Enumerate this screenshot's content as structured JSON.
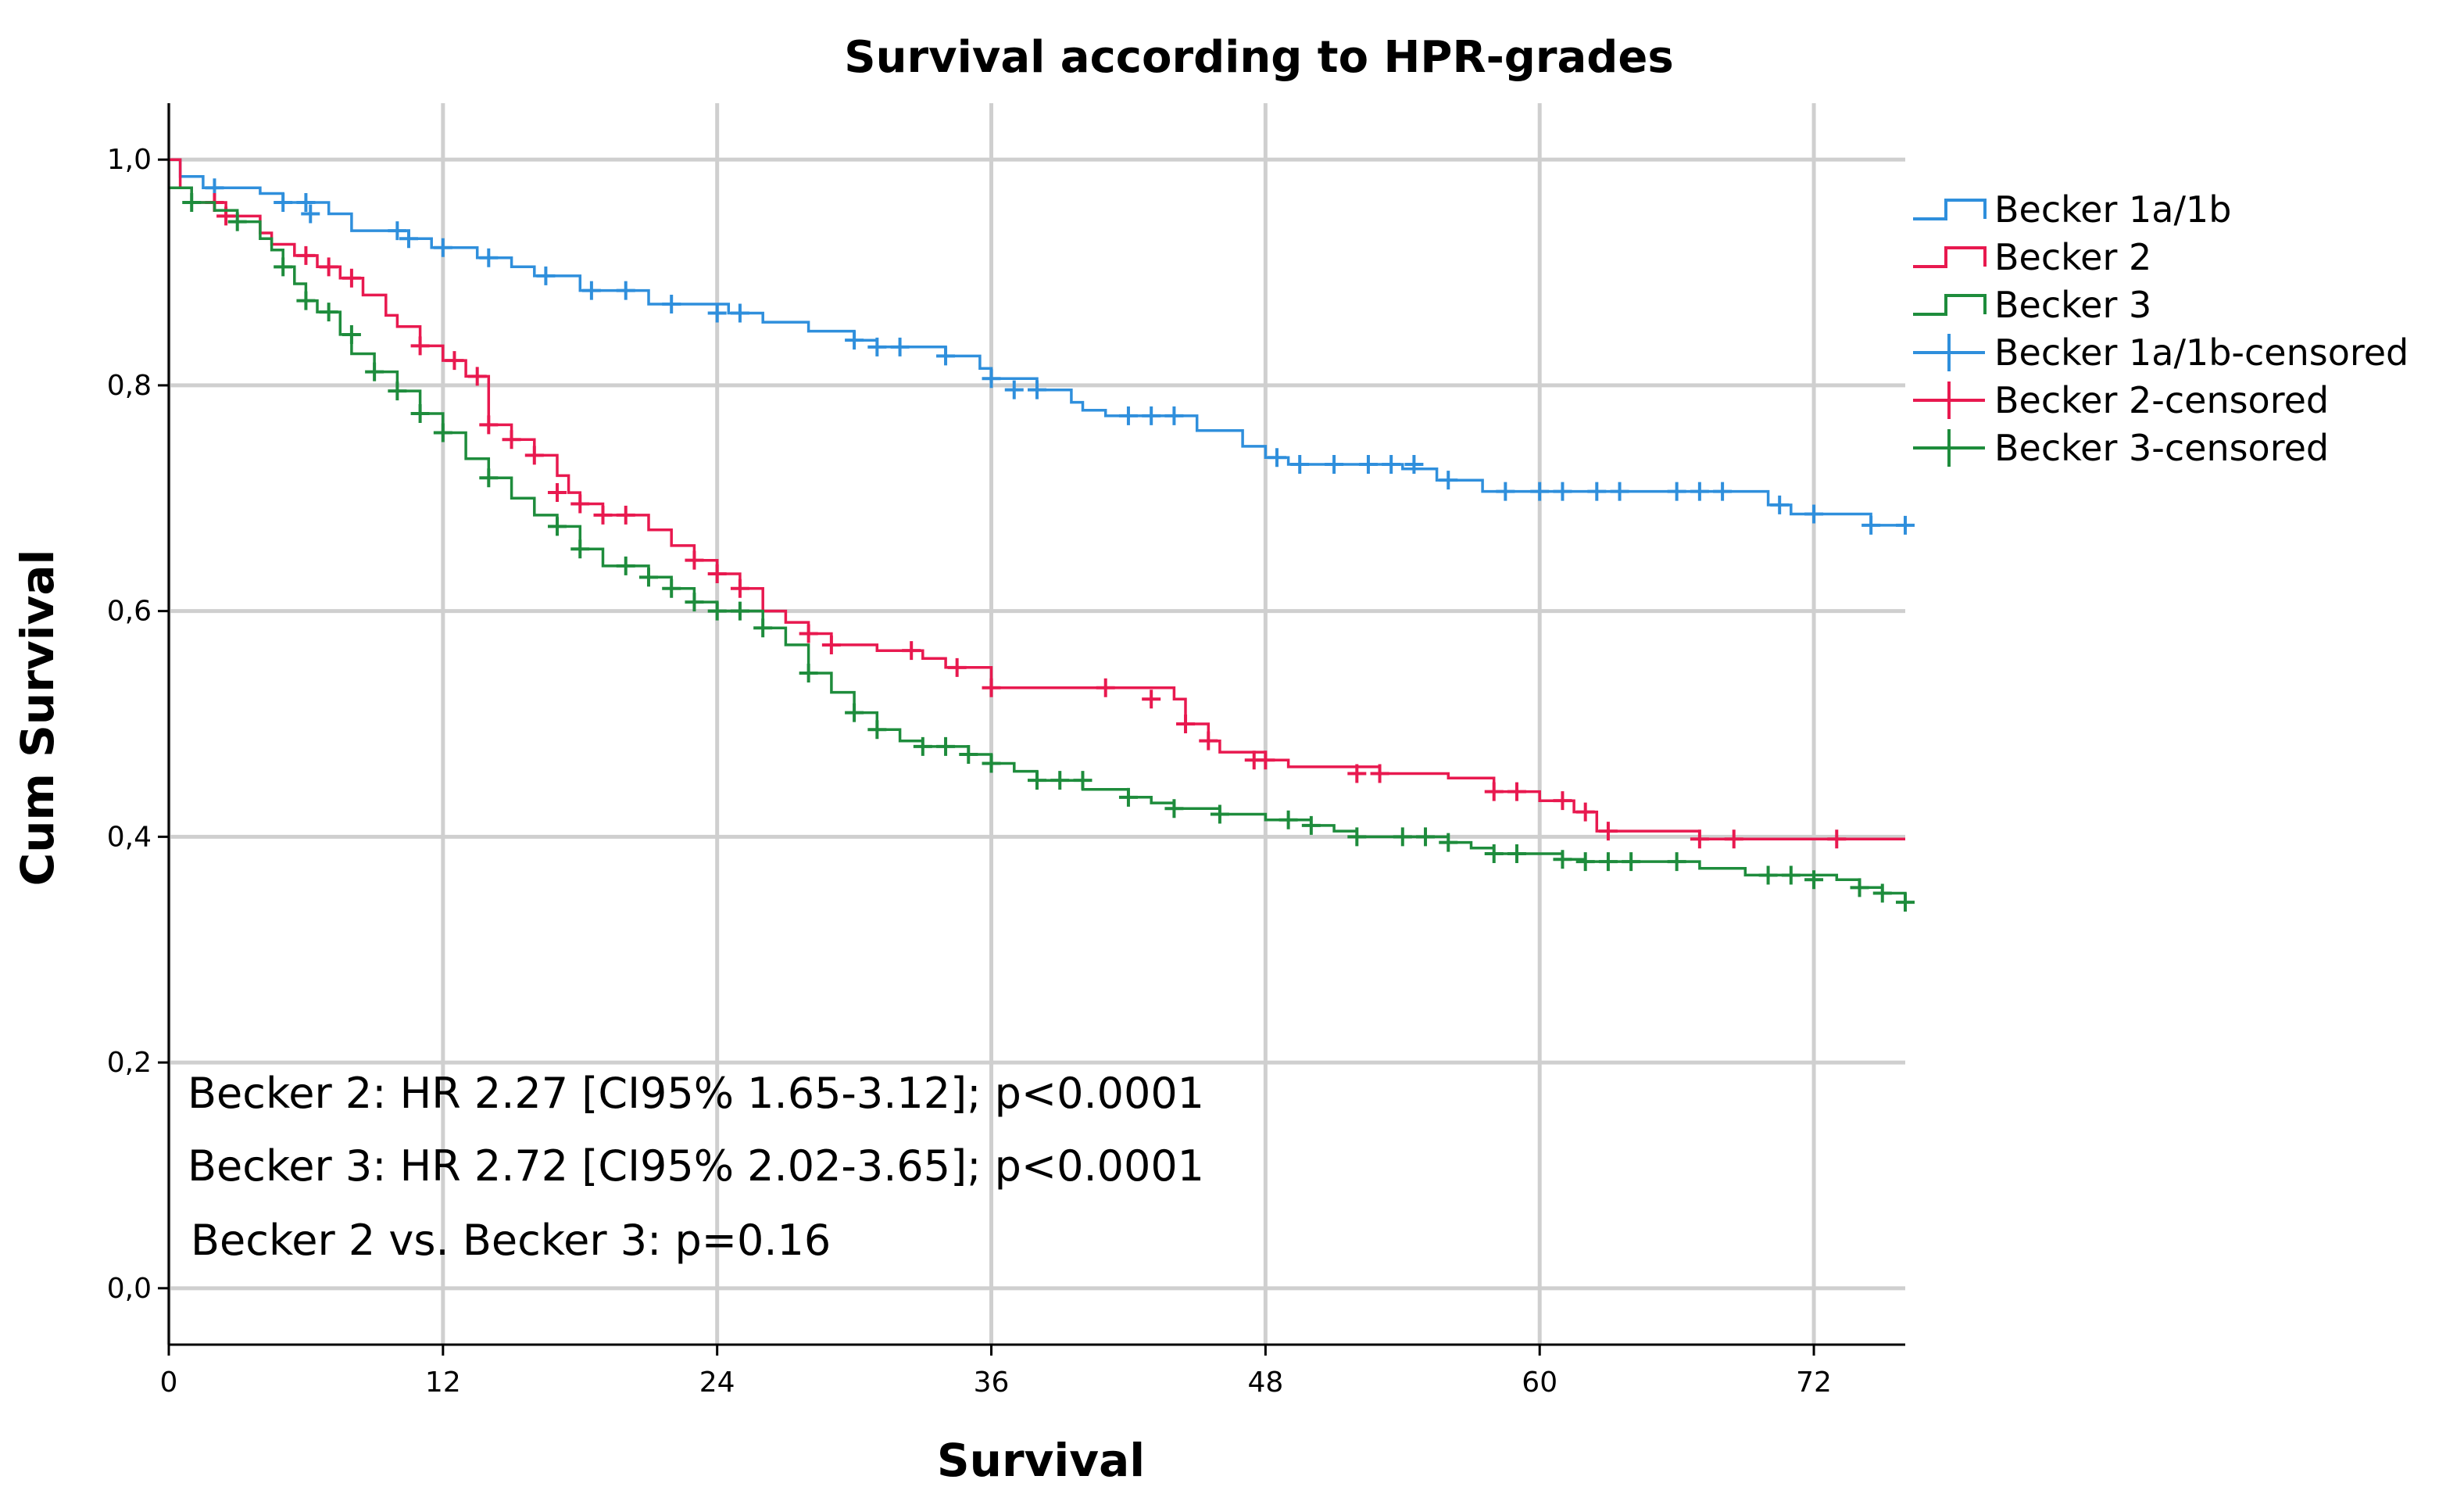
{
  "chart_data": {
    "type": "line",
    "title": "Survival according to HPR-grades",
    "xlabel": "Survival",
    "ylabel": "Cum Survival",
    "xlim": [
      0,
      76
    ],
    "ylim": [
      -0.05,
      1.05
    ],
    "x_ticks": [
      0,
      12,
      24,
      36,
      48,
      60,
      72
    ],
    "x_tick_labels": [
      "0",
      "12",
      "24",
      "36",
      "48",
      "60",
      "72"
    ],
    "y_ticks": [
      0.0,
      0.2,
      0.4,
      0.6,
      0.8,
      1.0
    ],
    "y_tick_labels": [
      "0,0",
      "0,2",
      "0,4",
      "0,6",
      "0,8",
      "1,0"
    ],
    "grid": true,
    "legend_position": "right",
    "legend": [
      {
        "label": "Becker 1a/1b",
        "kind": "step",
        "series": 0
      },
      {
        "label": "Becker 2",
        "kind": "step",
        "series": 1
      },
      {
        "label": "Becker 3",
        "kind": "step",
        "series": 2
      },
      {
        "label": "Becker 1a/1b-censored",
        "kind": "censor",
        "series": 0
      },
      {
        "label": "Becker 2-censored",
        "kind": "censor",
        "series": 1
      },
      {
        "label": "Becker 3-censored",
        "kind": "censor",
        "series": 2
      }
    ],
    "annotations": [
      "Becker 2: HR 2.27 [CI95% 1.65-3.12]; p<0.0001",
      "Becker 3: HR 2.72 [CI95% 2.02-3.65]; p<0.0001",
      "Becker 2 vs. Becker 3: p=0.16"
    ],
    "series": [
      {
        "name": "Becker 1a/1b",
        "color": "#2f8fdc",
        "steps": [
          [
            0,
            1.0
          ],
          [
            0.5,
            0.985
          ],
          [
            1.5,
            0.975
          ],
          [
            4,
            0.97
          ],
          [
            5,
            0.962
          ],
          [
            7,
            0.952
          ],
          [
            8,
            0.937
          ],
          [
            10.5,
            0.93
          ],
          [
            11.5,
            0.922
          ],
          [
            13.5,
            0.913
          ],
          [
            15,
            0.905
          ],
          [
            16,
            0.897
          ],
          [
            18,
            0.884
          ],
          [
            21,
            0.872
          ],
          [
            24.5,
            0.864
          ],
          [
            26,
            0.856
          ],
          [
            28,
            0.848
          ],
          [
            30,
            0.84
          ],
          [
            31,
            0.834
          ],
          [
            34,
            0.826
          ],
          [
            35.5,
            0.815
          ],
          [
            36,
            0.806
          ],
          [
            38,
            0.796
          ],
          [
            39.5,
            0.785
          ],
          [
            40,
            0.778
          ],
          [
            41,
            0.773
          ],
          [
            45,
            0.76
          ],
          [
            47,
            0.746
          ],
          [
            48,
            0.736
          ],
          [
            49,
            0.73
          ],
          [
            54,
            0.726
          ],
          [
            55.5,
            0.716
          ],
          [
            57.5,
            0.706
          ],
          [
            70,
            0.694
          ],
          [
            71,
            0.686
          ],
          [
            74.5,
            0.676
          ],
          [
            76,
            0.676
          ]
        ],
        "censors": [
          [
            2,
            0.975
          ],
          [
            5,
            0.962
          ],
          [
            6,
            0.962
          ],
          [
            6.2,
            0.952
          ],
          [
            10,
            0.937
          ],
          [
            10.5,
            0.93
          ],
          [
            12,
            0.922
          ],
          [
            14,
            0.913
          ],
          [
            16.5,
            0.897
          ],
          [
            18.5,
            0.884
          ],
          [
            20,
            0.884
          ],
          [
            22,
            0.872
          ],
          [
            24,
            0.864
          ],
          [
            25,
            0.864
          ],
          [
            30,
            0.84
          ],
          [
            31,
            0.834
          ],
          [
            32,
            0.834
          ],
          [
            34,
            0.826
          ],
          [
            36,
            0.806
          ],
          [
            37,
            0.796
          ],
          [
            38,
            0.796
          ],
          [
            42,
            0.773
          ],
          [
            43,
            0.773
          ],
          [
            44,
            0.773
          ],
          [
            48.5,
            0.736
          ],
          [
            49.5,
            0.73
          ],
          [
            51,
            0.73
          ],
          [
            52.5,
            0.73
          ],
          [
            53.5,
            0.73
          ],
          [
            54.5,
            0.73
          ],
          [
            56,
            0.716
          ],
          [
            58.5,
            0.706
          ],
          [
            60,
            0.706
          ],
          [
            61,
            0.706
          ],
          [
            62.5,
            0.706
          ],
          [
            63.5,
            0.706
          ],
          [
            66,
            0.706
          ],
          [
            67,
            0.706
          ],
          [
            68,
            0.706
          ],
          [
            70.5,
            0.694
          ],
          [
            72,
            0.686
          ],
          [
            74.5,
            0.676
          ],
          [
            76,
            0.676
          ]
        ]
      },
      {
        "name": "Becker 2",
        "color": "#e8194f",
        "steps": [
          [
            0,
            1.0
          ],
          [
            0.5,
            0.975
          ],
          [
            1,
            0.962
          ],
          [
            2.5,
            0.95
          ],
          [
            4,
            0.935
          ],
          [
            4.5,
            0.925
          ],
          [
            5.5,
            0.915
          ],
          [
            6.5,
            0.905
          ],
          [
            7.5,
            0.895
          ],
          [
            8.5,
            0.88
          ],
          [
            9.5,
            0.862
          ],
          [
            10,
            0.852
          ],
          [
            11,
            0.835
          ],
          [
            12,
            0.822
          ],
          [
            13,
            0.808
          ],
          [
            14,
            0.765
          ],
          [
            15,
            0.752
          ],
          [
            16,
            0.738
          ],
          [
            17,
            0.72
          ],
          [
            17.5,
            0.705
          ],
          [
            18,
            0.695
          ],
          [
            19,
            0.685
          ],
          [
            21,
            0.672
          ],
          [
            22,
            0.658
          ],
          [
            23,
            0.645
          ],
          [
            24,
            0.633
          ],
          [
            25,
            0.62
          ],
          [
            26,
            0.6
          ],
          [
            27,
            0.59
          ],
          [
            28,
            0.58
          ],
          [
            29,
            0.57
          ],
          [
            31,
            0.565
          ],
          [
            33,
            0.558
          ],
          [
            34,
            0.55
          ],
          [
            36,
            0.532
          ],
          [
            44,
            0.522
          ],
          [
            44.5,
            0.5
          ],
          [
            45.5,
            0.485
          ],
          [
            46,
            0.475
          ],
          [
            48,
            0.468
          ],
          [
            49,
            0.462
          ],
          [
            53,
            0.456
          ],
          [
            56,
            0.452
          ],
          [
            58,
            0.44
          ],
          [
            60,
            0.432
          ],
          [
            61.5,
            0.422
          ],
          [
            62.5,
            0.405
          ],
          [
            67,
            0.398
          ],
          [
            76,
            0.398
          ]
        ],
        "censors": [
          [
            2,
            0.962
          ],
          [
            2.5,
            0.95
          ],
          [
            6,
            0.915
          ],
          [
            7,
            0.905
          ],
          [
            8,
            0.895
          ],
          [
            11,
            0.835
          ],
          [
            12.5,
            0.822
          ],
          [
            13.5,
            0.808
          ],
          [
            14,
            0.765
          ],
          [
            15,
            0.752
          ],
          [
            16,
            0.738
          ],
          [
            17,
            0.705
          ],
          [
            18,
            0.695
          ],
          [
            19,
            0.685
          ],
          [
            20,
            0.685
          ],
          [
            23,
            0.645
          ],
          [
            24,
            0.633
          ],
          [
            25,
            0.62
          ],
          [
            28,
            0.58
          ],
          [
            29,
            0.57
          ],
          [
            32.5,
            0.565
          ],
          [
            34.5,
            0.55
          ],
          [
            36,
            0.532
          ],
          [
            41,
            0.532
          ],
          [
            43,
            0.522
          ],
          [
            44.5,
            0.5
          ],
          [
            45.5,
            0.485
          ],
          [
            47.5,
            0.468
          ],
          [
            48,
            0.468
          ],
          [
            52,
            0.456
          ],
          [
            53,
            0.456
          ],
          [
            58,
            0.44
          ],
          [
            59,
            0.44
          ],
          [
            61,
            0.432
          ],
          [
            62,
            0.422
          ],
          [
            63,
            0.405
          ],
          [
            67,
            0.398
          ],
          [
            68.5,
            0.398
          ],
          [
            73,
            0.398
          ]
        ]
      },
      {
        "name": "Becker 3",
        "color": "#1e8c3c",
        "steps": [
          [
            0,
            0.975
          ],
          [
            1,
            0.962
          ],
          [
            2,
            0.955
          ],
          [
            3,
            0.945
          ],
          [
            4,
            0.93
          ],
          [
            4.5,
            0.92
          ],
          [
            5,
            0.905
          ],
          [
            5.5,
            0.89
          ],
          [
            6,
            0.875
          ],
          [
            6.5,
            0.865
          ],
          [
            7.5,
            0.845
          ],
          [
            8,
            0.828
          ],
          [
            9,
            0.812
          ],
          [
            10,
            0.795
          ],
          [
            11,
            0.775
          ],
          [
            12,
            0.758
          ],
          [
            13,
            0.735
          ],
          [
            14,
            0.718
          ],
          [
            15,
            0.7
          ],
          [
            16,
            0.685
          ],
          [
            17,
            0.675
          ],
          [
            18,
            0.655
          ],
          [
            19,
            0.64
          ],
          [
            21,
            0.63
          ],
          [
            22,
            0.62
          ],
          [
            23,
            0.608
          ],
          [
            24,
            0.6
          ],
          [
            26,
            0.585
          ],
          [
            27,
            0.57
          ],
          [
            28,
            0.545
          ],
          [
            29,
            0.528
          ],
          [
            30,
            0.51
          ],
          [
            31,
            0.495
          ],
          [
            32,
            0.485
          ],
          [
            33,
            0.48
          ],
          [
            35,
            0.473
          ],
          [
            36,
            0.465
          ],
          [
            37,
            0.458
          ],
          [
            38,
            0.45
          ],
          [
            40,
            0.442
          ],
          [
            42,
            0.435
          ],
          [
            43,
            0.43
          ],
          [
            44,
            0.425
          ],
          [
            46,
            0.42
          ],
          [
            48,
            0.415
          ],
          [
            50,
            0.41
          ],
          [
            51,
            0.405
          ],
          [
            52,
            0.4
          ],
          [
            56,
            0.395
          ],
          [
            57,
            0.39
          ],
          [
            58,
            0.385
          ],
          [
            61,
            0.38
          ],
          [
            62,
            0.378
          ],
          [
            67,
            0.372
          ],
          [
            69,
            0.366
          ],
          [
            73,
            0.362
          ],
          [
            74,
            0.355
          ],
          [
            75,
            0.35
          ],
          [
            76,
            0.342
          ]
        ],
        "censors": [
          [
            1,
            0.962
          ],
          [
            3,
            0.945
          ],
          [
            5,
            0.905
          ],
          [
            6,
            0.875
          ],
          [
            7,
            0.865
          ],
          [
            8,
            0.845
          ],
          [
            9,
            0.812
          ],
          [
            10,
            0.795
          ],
          [
            11,
            0.775
          ],
          [
            12,
            0.758
          ],
          [
            14,
            0.718
          ],
          [
            17,
            0.675
          ],
          [
            18,
            0.655
          ],
          [
            20,
            0.64
          ],
          [
            21,
            0.63
          ],
          [
            22,
            0.62
          ],
          [
            23,
            0.608
          ],
          [
            24,
            0.6
          ],
          [
            25,
            0.6
          ],
          [
            26,
            0.585
          ],
          [
            28,
            0.545
          ],
          [
            30,
            0.51
          ],
          [
            31,
            0.495
          ],
          [
            33,
            0.48
          ],
          [
            34,
            0.48
          ],
          [
            35,
            0.473
          ],
          [
            36,
            0.465
          ],
          [
            38,
            0.45
          ],
          [
            39,
            0.45
          ],
          [
            40,
            0.45
          ],
          [
            42,
            0.435
          ],
          [
            44,
            0.425
          ],
          [
            46,
            0.42
          ],
          [
            49,
            0.415
          ],
          [
            50,
            0.41
          ],
          [
            52,
            0.4
          ],
          [
            54,
            0.4
          ],
          [
            55,
            0.4
          ],
          [
            56,
            0.395
          ],
          [
            58,
            0.385
          ],
          [
            59,
            0.385
          ],
          [
            61,
            0.38
          ],
          [
            62,
            0.378
          ],
          [
            63,
            0.378
          ],
          [
            64,
            0.378
          ],
          [
            66,
            0.378
          ],
          [
            70,
            0.366
          ],
          [
            71,
            0.366
          ],
          [
            72,
            0.362
          ],
          [
            74,
            0.355
          ],
          [
            75,
            0.35
          ],
          [
            76,
            0.342
          ]
        ]
      }
    ]
  }
}
